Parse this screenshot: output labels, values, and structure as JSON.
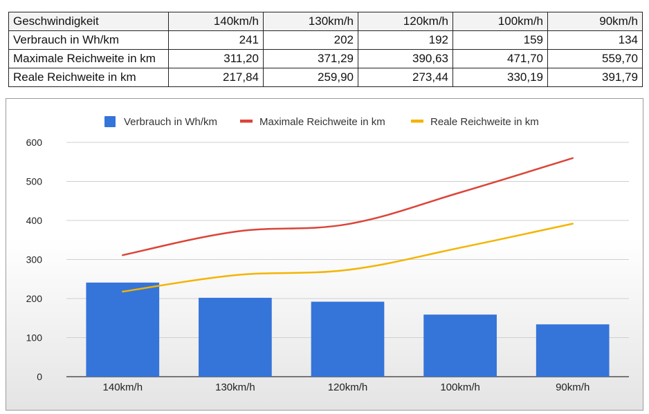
{
  "table": {
    "header": {
      "label": "Geschwindigkeit",
      "cells": [
        "140km/h",
        "130km/h",
        "120km/h",
        "100km/h",
        "90km/h"
      ]
    },
    "rows": [
      {
        "label": "Verbrauch in Wh/km",
        "cells": [
          "241",
          "202",
          "192",
          "159",
          "134"
        ]
      },
      {
        "label": "Maximale Reichweite in km",
        "cells": [
          "311,20",
          "371,29",
          "390,63",
          "471,70",
          "559,70"
        ]
      },
      {
        "label": "Reale Reichweite in km",
        "cells": [
          "217,84",
          "259,90",
          "273,44",
          "330,19",
          "391,79"
        ]
      }
    ]
  },
  "chart_data": {
    "type": "bar",
    "categories": [
      "140km/h",
      "130km/h",
      "120km/h",
      "100km/h",
      "90km/h"
    ],
    "series": [
      {
        "name": "Verbrauch in Wh/km",
        "type": "bar",
        "color": "#3574d9",
        "values": [
          241,
          202,
          192,
          159,
          134
        ]
      },
      {
        "name": "Maximale Reichweite in km",
        "type": "line",
        "color": "#db4437",
        "values": [
          311.2,
          371.29,
          390.63,
          471.7,
          559.7
        ]
      },
      {
        "name": "Reale Reichweite in km",
        "type": "line",
        "color": "#f4b400",
        "values": [
          217.84,
          259.9,
          273.44,
          330.19,
          391.79
        ]
      }
    ],
    "yticks": [
      "0",
      "100",
      "200",
      "300",
      "400",
      "500",
      "600"
    ],
    "ylim": [
      0,
      600
    ],
    "grid": true,
    "legend": "top",
    "title": "",
    "xlabel": "",
    "ylabel": ""
  }
}
